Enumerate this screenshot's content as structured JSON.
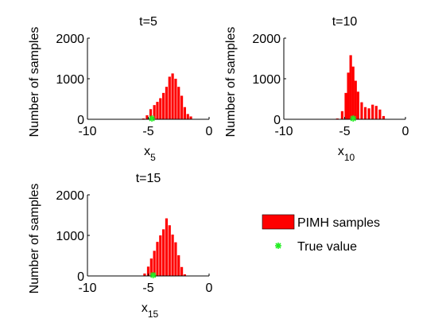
{
  "colors": {
    "bar": "#ff0000",
    "marker": "#22ee22",
    "axis": "#000000"
  },
  "legend": {
    "entries": [
      {
        "label": "PIMH samples",
        "kind": "patch",
        "color": "#ff0000"
      },
      {
        "label": "True value",
        "kind": "marker",
        "color": "#22ee22"
      }
    ]
  },
  "chart_data": [
    {
      "type": "bar",
      "title": "t=5",
      "ylabel": "Number of samples",
      "xlabel_main": "x",
      "xlabel_sub": "5",
      "xlim": [
        -10,
        0
      ],
      "ylim": [
        0,
        2000
      ],
      "xticks": [
        "-10",
        "-5",
        "0"
      ],
      "xtick_values": [
        -10,
        -5,
        0
      ],
      "yticks": [
        "0",
        "1000",
        "2000"
      ],
      "ytick_values": [
        0,
        1000,
        2000
      ],
      "bin_width": 0.25,
      "bars": [
        {
          "x": -5.4,
          "y": 20
        },
        {
          "x": -5.1,
          "y": 100
        },
        {
          "x": -4.8,
          "y": 250
        },
        {
          "x": -4.5,
          "y": 350
        },
        {
          "x": -4.25,
          "y": 430
        },
        {
          "x": -4.0,
          "y": 520
        },
        {
          "x": -3.75,
          "y": 650
        },
        {
          "x": -3.5,
          "y": 800
        },
        {
          "x": -3.25,
          "y": 1050
        },
        {
          "x": -3.0,
          "y": 1130
        },
        {
          "x": -2.75,
          "y": 1000
        },
        {
          "x": -2.5,
          "y": 800
        },
        {
          "x": -2.25,
          "y": 580
        },
        {
          "x": -2.0,
          "y": 300
        },
        {
          "x": -1.75,
          "y": 130
        },
        {
          "x": -1.5,
          "y": 70
        }
      ],
      "true_value": -4.7
    },
    {
      "type": "bar",
      "title": "t=10",
      "ylabel": "Number of samples",
      "xlabel_main": "x",
      "xlabel_sub": "10",
      "xlim": [
        -10,
        0
      ],
      "ylim": [
        0,
        2000
      ],
      "xticks": [
        "-10",
        "-5",
        "0"
      ],
      "xtick_values": [
        -10,
        -5,
        0
      ],
      "yticks": [
        "0",
        "1000",
        "2000"
      ],
      "ytick_values": [
        0,
        1000,
        2000
      ],
      "bin_width": 0.25,
      "bars": [
        {
          "x": -5.6,
          "y": 20
        },
        {
          "x": -5.2,
          "y": 200
        },
        {
          "x": -4.9,
          "y": 650
        },
        {
          "x": -4.7,
          "y": 1150
        },
        {
          "x": -4.5,
          "y": 1580
        },
        {
          "x": -4.3,
          "y": 1300
        },
        {
          "x": -4.1,
          "y": 950
        },
        {
          "x": -3.9,
          "y": 680
        },
        {
          "x": -3.6,
          "y": 420
        },
        {
          "x": -3.3,
          "y": 300
        },
        {
          "x": -3.0,
          "y": 270
        },
        {
          "x": -2.7,
          "y": 360
        },
        {
          "x": -2.4,
          "y": 330
        },
        {
          "x": -2.1,
          "y": 240
        },
        {
          "x": -1.8,
          "y": 80
        }
      ],
      "true_value": -4.3
    },
    {
      "type": "bar",
      "title": "t=15",
      "ylabel": "Number of samples",
      "xlabel_main": "x",
      "xlabel_sub": "15",
      "xlim": [
        -10,
        0
      ],
      "ylim": [
        0,
        2000
      ],
      "xticks": [
        "-10",
        "-5",
        "0"
      ],
      "xtick_values": [
        -10,
        -5,
        0
      ],
      "yticks": [
        "0",
        "1000",
        "2000"
      ],
      "ytick_values": [
        0,
        1000,
        2000
      ],
      "bin_width": 0.25,
      "bars": [
        {
          "x": -5.3,
          "y": 60
        },
        {
          "x": -5.0,
          "y": 230
        },
        {
          "x": -4.75,
          "y": 430
        },
        {
          "x": -4.5,
          "y": 620
        },
        {
          "x": -4.25,
          "y": 840
        },
        {
          "x": -4.0,
          "y": 1000
        },
        {
          "x": -3.75,
          "y": 1150
        },
        {
          "x": -3.5,
          "y": 1420
        },
        {
          "x": -3.25,
          "y": 1250
        },
        {
          "x": -3.0,
          "y": 1020
        },
        {
          "x": -2.75,
          "y": 830
        },
        {
          "x": -2.5,
          "y": 510
        },
        {
          "x": -2.25,
          "y": 220
        },
        {
          "x": -2.0,
          "y": 40
        }
      ],
      "true_value": -4.6
    }
  ]
}
